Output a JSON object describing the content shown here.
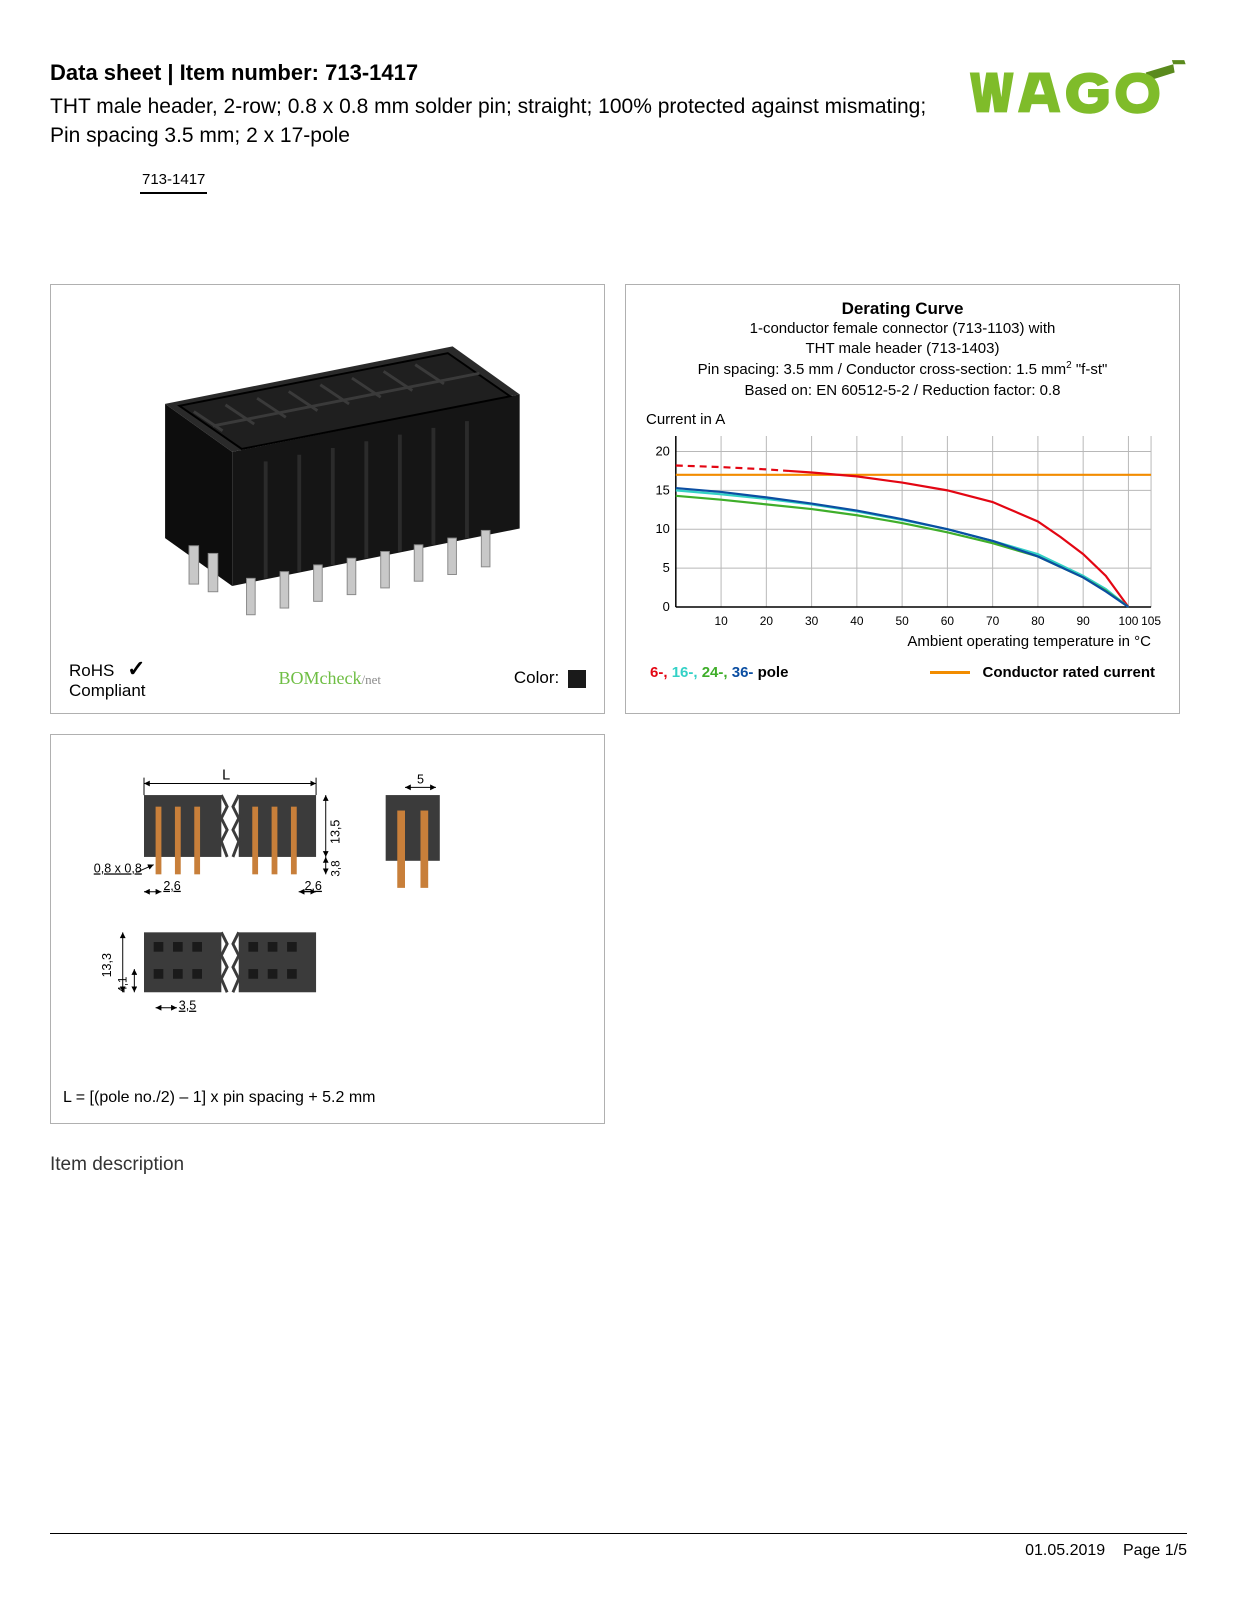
{
  "header": {
    "title_prefix": "Data sheet  |  Item number: ",
    "item_number": "713-1417",
    "subtitle": "THT male header, 2-row; 0.8 x 0.8 mm solder pin; straight; 100% protected against mismating; Pin spacing 3.5 mm; 2 x 17-pole",
    "item_label": "713-1417"
  },
  "logo": {
    "text": "WAGO",
    "fill": "#7fbc2a",
    "shadow": "#5a8a1d"
  },
  "product_panel": {
    "connector_body_color": "#1a1a1a",
    "pin_color": "#c8c8c8",
    "rohs_line1": "RoHS",
    "rohs_line2": "Compliant",
    "check_color": "#000",
    "bomcheck_text": "BOMcheck",
    "bomcheck_net": "/net",
    "color_label": "Color:",
    "color_swatch": "#1a1a1a"
  },
  "chart": {
    "title": "Derating Curve",
    "sub1": "1-conductor female connector (713-1103) with",
    "sub2": "THT male header (713-1403)",
    "sub3_a": "Pin spacing: 3.5 mm / Conductor cross-section: 1.5 mm",
    "sub3_b": " \"f-st\"",
    "sub4": "Based on: EN 60512-5-2 / Reduction factor: 0.8",
    "ylabel": "Current in A",
    "xlabel": "Ambient operating temperature in °C",
    "x_ticks": [
      10,
      20,
      30,
      40,
      50,
      60,
      70,
      80,
      90,
      100,
      105
    ],
    "y_ticks": [
      0,
      5,
      10,
      15,
      20
    ],
    "xlim": [
      0,
      105
    ],
    "ylim": [
      0,
      22
    ],
    "grid_color": "#b8b8b8",
    "axis_color": "#000",
    "background": "#fefefe",
    "series": {
      "pole6": {
        "color": "#e30613",
        "dash_until_x": 25,
        "points": [
          [
            0,
            18.2
          ],
          [
            10,
            18.0
          ],
          [
            20,
            17.7
          ],
          [
            25,
            17.5
          ],
          [
            30,
            17.3
          ],
          [
            40,
            16.8
          ],
          [
            50,
            16.0
          ],
          [
            60,
            15.0
          ],
          [
            70,
            13.5
          ],
          [
            80,
            11.0
          ],
          [
            85,
            9.0
          ],
          [
            90,
            6.8
          ],
          [
            95,
            4.0
          ],
          [
            100,
            0
          ]
        ]
      },
      "pole16": {
        "color": "#33d1c6",
        "points": [
          [
            0,
            15.0
          ],
          [
            10,
            14.5
          ],
          [
            20,
            13.9
          ],
          [
            30,
            13.2
          ],
          [
            40,
            12.3
          ],
          [
            50,
            11.2
          ],
          [
            60,
            10.0
          ],
          [
            70,
            8.5
          ],
          [
            80,
            6.8
          ],
          [
            90,
            4.0
          ],
          [
            95,
            2.3
          ],
          [
            100,
            0
          ]
        ]
      },
      "pole24": {
        "color": "#3fae2a",
        "points": [
          [
            0,
            14.3
          ],
          [
            10,
            13.8
          ],
          [
            20,
            13.2
          ],
          [
            30,
            12.6
          ],
          [
            40,
            11.8
          ],
          [
            50,
            10.8
          ],
          [
            60,
            9.6
          ],
          [
            70,
            8.2
          ],
          [
            80,
            6.5
          ],
          [
            90,
            3.8
          ],
          [
            95,
            2.1
          ],
          [
            100,
            0
          ]
        ]
      },
      "pole36": {
        "color": "#0b4ea2",
        "points": [
          [
            0,
            15.3
          ],
          [
            10,
            14.8
          ],
          [
            20,
            14.1
          ],
          [
            30,
            13.3
          ],
          [
            40,
            12.4
          ],
          [
            50,
            11.3
          ],
          [
            60,
            10.0
          ],
          [
            70,
            8.5
          ],
          [
            80,
            6.5
          ],
          [
            90,
            3.8
          ],
          [
            95,
            2.0
          ],
          [
            100,
            0
          ]
        ]
      },
      "rated": {
        "color": "#f28c00",
        "points": [
          [
            0,
            17
          ],
          [
            105,
            17
          ]
        ]
      }
    },
    "legend": {
      "p6": {
        "label": "6-,",
        "color": "#e30613"
      },
      "p16": {
        "label": "16-,",
        "color": "#33d1c6"
      },
      "p24": {
        "label": "24-,",
        "color": "#3fae2a"
      },
      "p36": {
        "label": "36-",
        "color": "#0b4ea2"
      },
      "suffix": "pole",
      "rated_label": "Conductor rated current",
      "rated_color": "#f28c00"
    }
  },
  "dimensions": {
    "body_color": "#3b3b3b",
    "pin_color_silver": "#d0d0d0",
    "pin_color_copper": "#c87f3a",
    "labels": {
      "L": "L",
      "five": "5",
      "h135": "13,5",
      "h38": "3,8",
      "pin08": "0,8 x 0,8",
      "s26a": "2,6",
      "s26b": "2,6",
      "h133": "13,3",
      "h41": "4,1",
      "s35": "3,5"
    },
    "formula": "L = [(pole no./2) – 1] x pin spacing + 5.2 mm"
  },
  "section_heading": "Item description",
  "footer": {
    "date": "01.05.2019",
    "page": "Page 1/5"
  }
}
